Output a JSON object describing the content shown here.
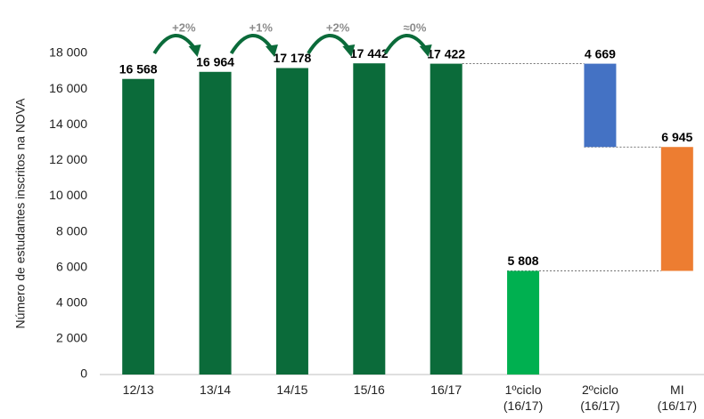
{
  "chart_data": {
    "type": "waterfall",
    "y_axis_label": "Número de estudantes inscritos na NOVA",
    "categories": [
      "12/13",
      "13/14",
      "14/15",
      "15/16",
      "16/17",
      "1ºciclo\n(16/17)",
      "2ºciclo\n(16/17)",
      "MI\n(16/17)"
    ],
    "values": [
      16568,
      16964,
      17178,
      17442,
      17422,
      5808,
      4669,
      6945
    ],
    "value_labels": [
      "16 568",
      "16 964",
      "17 178",
      "17 442",
      "17 422",
      "5 808",
      "4 669",
      "6 945"
    ],
    "colors": [
      "#0b6b3a",
      "#0b6b3a",
      "#0b6b3a",
      "#0b6b3a",
      "#0b6b3a",
      "#00b050",
      "#4472c4",
      "#ed7d31"
    ],
    "annotations": [
      "+2%",
      "+1%",
      "+2%",
      "≈0%"
    ],
    "ylim": [
      0,
      18000
    ],
    "yticks": [
      0,
      {
        "value": 2000,
        "label": "2 000"
      },
      {
        "value": 4000,
        "label": "4 000"
      },
      {
        "value": 6000,
        "label": "6 000"
      },
      {
        "value": 8000,
        "label": "8 000"
      },
      {
        "value": 10000,
        "label": "10 000"
      },
      {
        "value": 12000,
        "label": "12 000"
      },
      {
        "value": 14000,
        "label": "14 000"
      },
      {
        "value": 16000,
        "label": "16 000"
      },
      {
        "value": 18000,
        "label": "18 000"
      }
    ],
    "grid": false
  }
}
